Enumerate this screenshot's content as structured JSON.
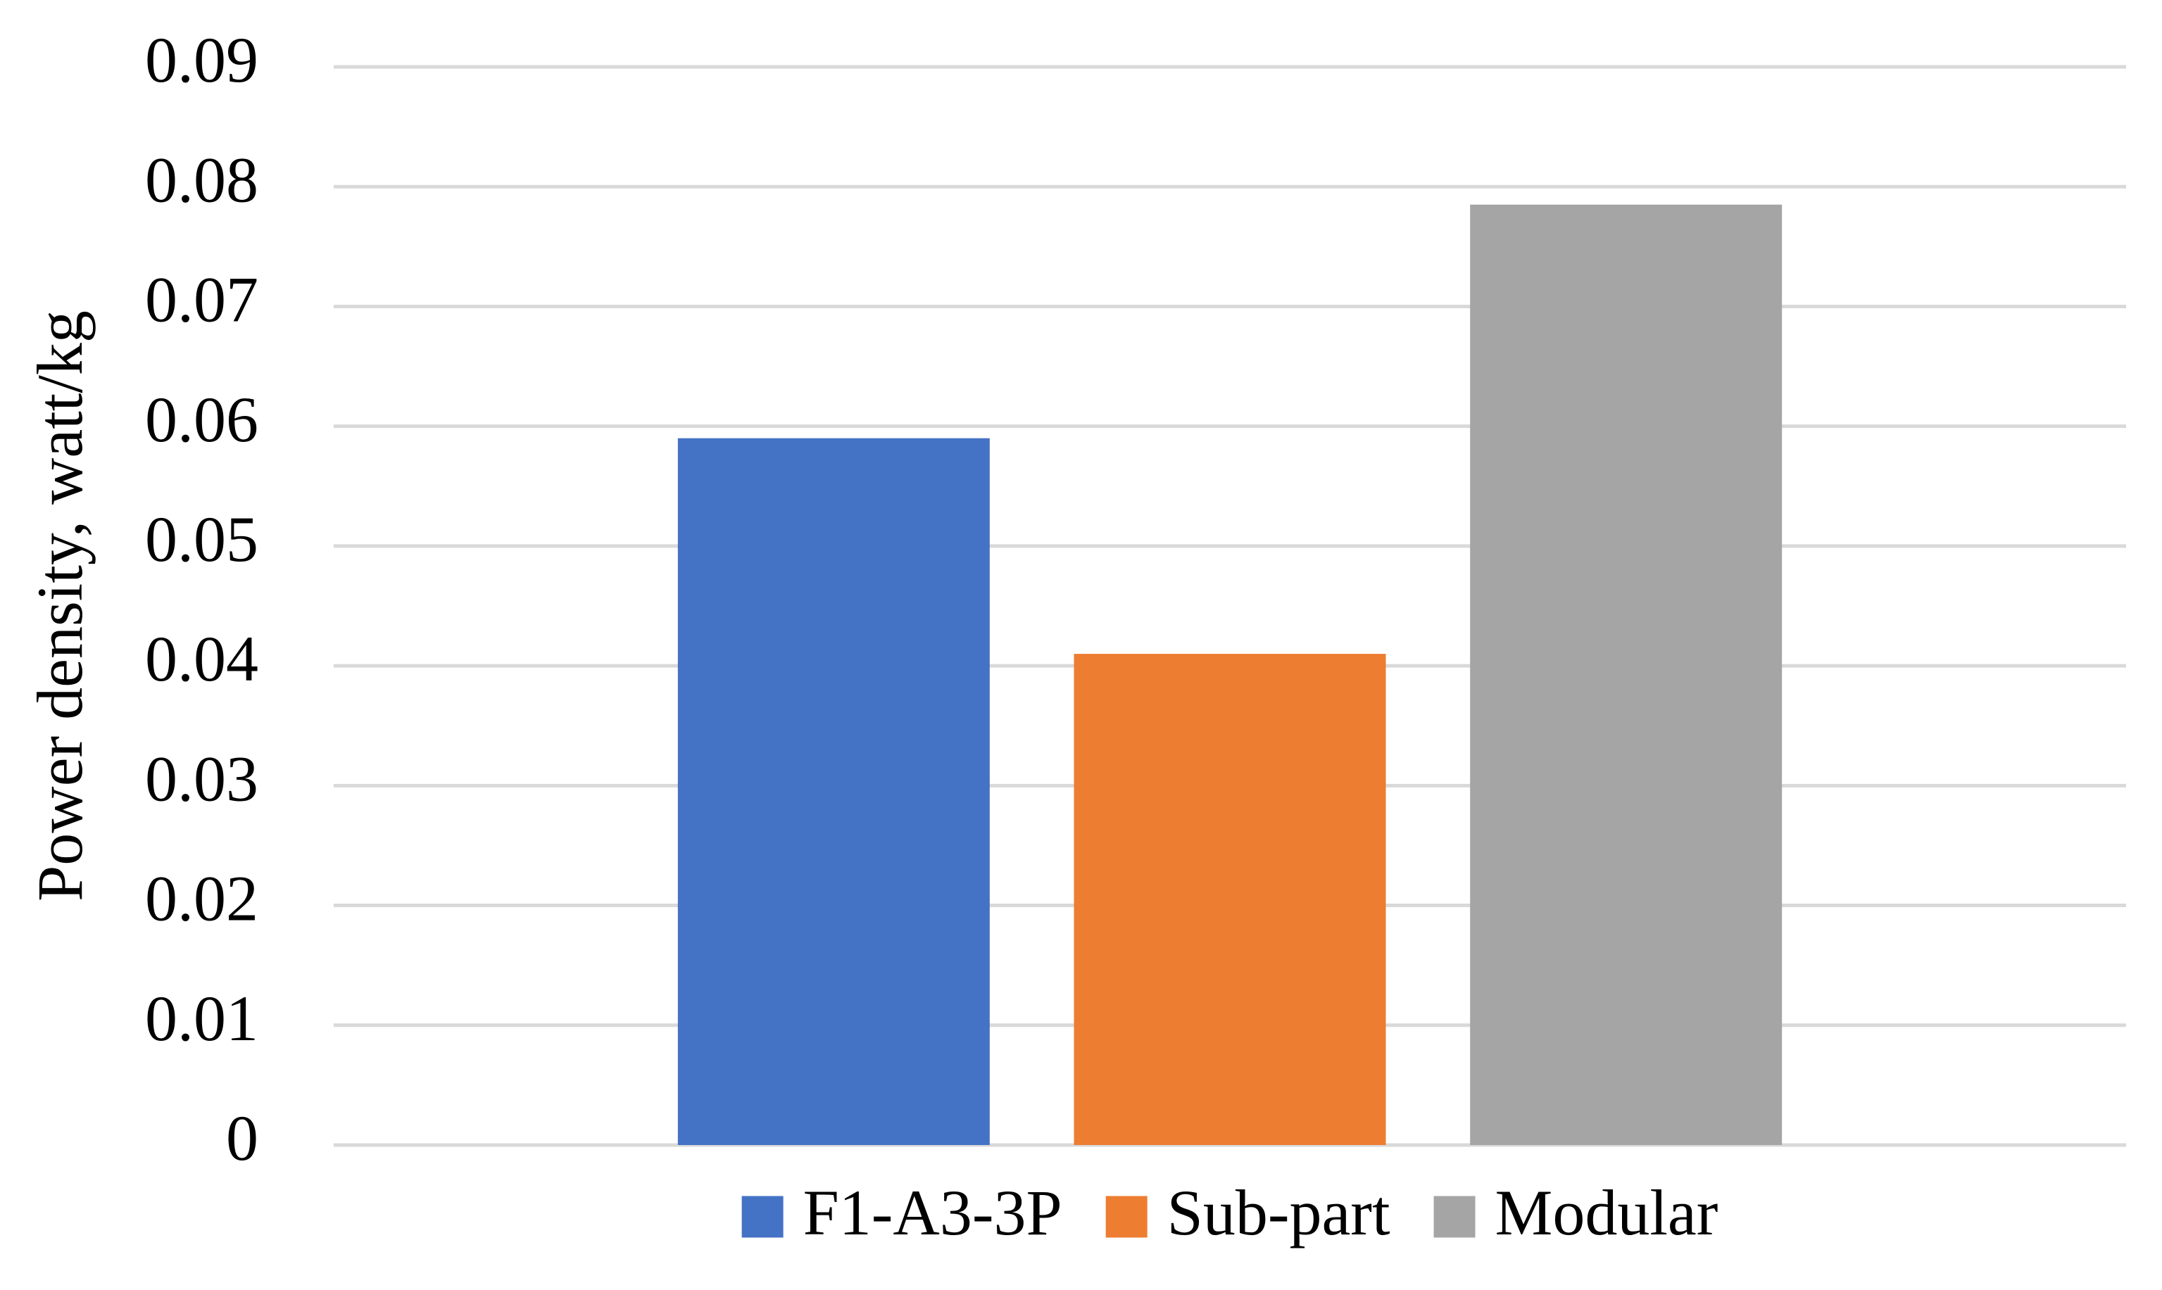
{
  "chart_data": {
    "type": "bar",
    "y_label": "Power density, watt/kg",
    "categories": [
      null
    ],
    "series": [
      {
        "name": "F1-A3-3P",
        "color": "#4472c4",
        "values": [
          0.059
        ]
      },
      {
        "name": "Sub-part",
        "color": "#ed7d31",
        "values": [
          0.041
        ]
      },
      {
        "name": "Modular",
        "color": "#a5a5a5",
        "values": [
          0.0785
        ]
      }
    ],
    "ylim": [
      0,
      0.09
    ],
    "yticks": [
      0,
      0.01,
      0.02,
      0.03,
      0.04,
      0.05,
      0.06,
      0.07,
      0.08,
      0.09
    ],
    "grid": true,
    "legend": "bottom"
  }
}
